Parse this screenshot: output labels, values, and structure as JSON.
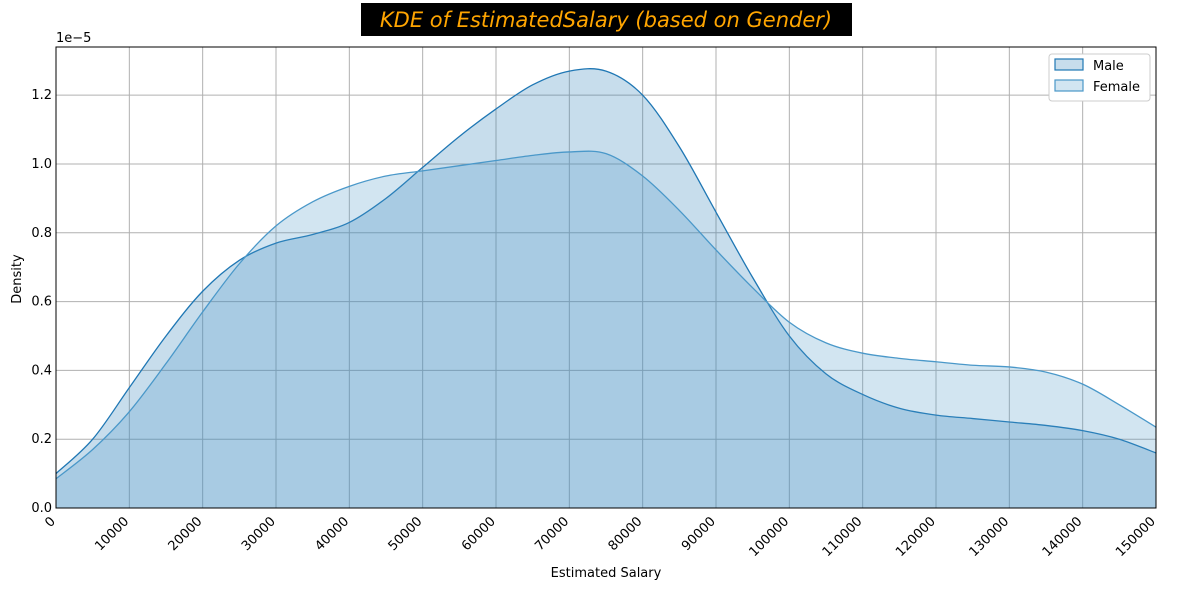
{
  "chart_data": {
    "type": "area",
    "title": "KDE of EstimatedSalary (based on Gender)",
    "title_color": "#ffa500",
    "title_bg": "#000000",
    "xlabel": "Estimated Salary",
    "ylabel": "Density",
    "y_offset_label": "1e−5",
    "xlim": [
      0,
      150000
    ],
    "ylim": [
      0,
      1.34
    ],
    "x_ticks": [
      0,
      10000,
      20000,
      30000,
      40000,
      50000,
      60000,
      70000,
      80000,
      90000,
      100000,
      110000,
      120000,
      130000,
      140000,
      150000
    ],
    "x_tick_labels": [
      "0",
      "10000",
      "20000",
      "30000",
      "40000",
      "50000",
      "60000",
      "70000",
      "80000",
      "90000",
      "100000",
      "110000",
      "120000",
      "130000",
      "140000",
      "150000"
    ],
    "y_ticks": [
      0,
      0.2,
      0.4,
      0.6,
      0.8,
      1.0,
      1.2
    ],
    "y_tick_labels": [
      "0.0",
      "0.2",
      "0.4",
      "0.6",
      "0.8",
      "1.0",
      "1.2"
    ],
    "grid": true,
    "legend_position": "top-right",
    "x": [
      0,
      5000,
      10000,
      15000,
      20000,
      25000,
      30000,
      35000,
      40000,
      45000,
      50000,
      55000,
      60000,
      65000,
      70000,
      75000,
      80000,
      85000,
      90000,
      95000,
      100000,
      105000,
      110000,
      115000,
      120000,
      125000,
      130000,
      135000,
      140000,
      145000,
      150000
    ],
    "series": [
      {
        "name": "Male",
        "color": "#1f77b4",
        "values": [
          0.1,
          0.2,
          0.35,
          0.5,
          0.63,
          0.72,
          0.77,
          0.795,
          0.83,
          0.9,
          0.99,
          1.08,
          1.16,
          1.23,
          1.27,
          1.27,
          1.2,
          1.05,
          0.86,
          0.67,
          0.5,
          0.39,
          0.33,
          0.29,
          0.27,
          0.26,
          0.25,
          0.24,
          0.225,
          0.2,
          0.16
        ]
      },
      {
        "name": "Female",
        "color": "#4a98c9",
        "values": [
          0.085,
          0.17,
          0.28,
          0.42,
          0.57,
          0.71,
          0.82,
          0.89,
          0.935,
          0.965,
          0.98,
          0.995,
          1.01,
          1.025,
          1.035,
          1.03,
          0.965,
          0.865,
          0.75,
          0.64,
          0.54,
          0.48,
          0.45,
          0.435,
          0.425,
          0.415,
          0.41,
          0.395,
          0.36,
          0.3,
          0.235
        ]
      }
    ]
  }
}
